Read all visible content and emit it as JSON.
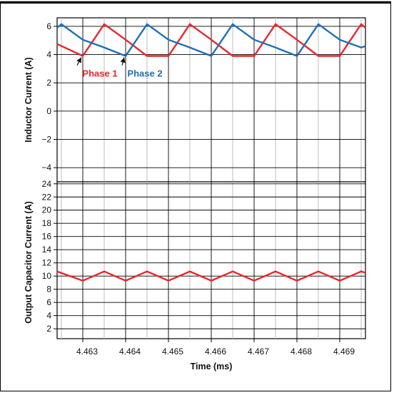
{
  "chart_data": [
    {
      "type": "line",
      "title": "",
      "xlabel": "",
      "ylabel": "Inductor Current (A)",
      "xlim": [
        4.4624,
        4.4696
      ],
      "ylim": [
        -5,
        6.6
      ],
      "grid": true,
      "x_ticks": [
        4.463,
        4.464,
        4.465,
        4.466,
        4.467,
        4.468,
        4.469
      ],
      "y_ticks": [
        -4,
        -2,
        0,
        2,
        4,
        6
      ],
      "y_tick_labels": [
        "−4",
        "−2",
        "0",
        "2",
        "4",
        "6"
      ],
      "series": [
        {
          "name": "Phase 1",
          "color": "#e8262c",
          "x": [
            4.4624,
            4.463,
            4.4635,
            4.464,
            4.4645,
            4.465,
            4.4655,
            4.466,
            4.4665,
            4.467,
            4.4675,
            4.468,
            4.4685,
            4.469,
            4.4695,
            4.4696
          ],
          "y": [
            4.75,
            3.9,
            6.15,
            5.05,
            3.9,
            3.9,
            6.15,
            5.05,
            3.9,
            3.9,
            6.15,
            5.05,
            3.9,
            3.9,
            6.15,
            5.9
          ]
        },
        {
          "name": "Phase 2",
          "color": "#1f6fb5",
          "x": [
            4.4624,
            4.4625,
            4.463,
            4.4635,
            4.464,
            4.4645,
            4.465,
            4.4655,
            4.466,
            4.4665,
            4.467,
            4.4675,
            4.468,
            4.4685,
            4.469,
            4.4695,
            4.4696
          ],
          "y": [
            5.9,
            6.15,
            5.05,
            4.5,
            3.9,
            6.15,
            5.05,
            4.5,
            3.9,
            6.15,
            5.05,
            4.5,
            3.9,
            6.15,
            5.05,
            4.5,
            4.6
          ]
        }
      ],
      "annotations": [
        {
          "text": "Phase 1",
          "color": "#e8262c",
          "points_to": [
            4.463,
            3.9
          ]
        },
        {
          "text": "Phase 2",
          "color": "#1f6fb5",
          "points_to": [
            4.464,
            3.9
          ]
        }
      ]
    },
    {
      "type": "line",
      "title": "",
      "xlabel": "Time (ms)",
      "ylabel": "Output Capacitor Current (A)",
      "xlim": [
        4.4624,
        4.4696
      ],
      "ylim": [
        0.5,
        24.3
      ],
      "grid": true,
      "x_ticks": [
        4.463,
        4.464,
        4.465,
        4.466,
        4.467,
        4.468,
        4.469
      ],
      "x_tick_labels": [
        "4.463",
        "4.464",
        "4.465",
        "4.466",
        "4.467",
        "4.468",
        "4.469"
      ],
      "y_ticks": [
        2,
        4,
        6,
        8,
        10,
        12,
        14,
        16,
        18,
        20,
        22,
        24
      ],
      "series": [
        {
          "name": "",
          "color": "#e8262c",
          "x": [
            4.4624,
            4.463,
            4.4635,
            4.464,
            4.4645,
            4.465,
            4.4655,
            4.466,
            4.4665,
            4.467,
            4.4675,
            4.468,
            4.4685,
            4.469,
            4.4695,
            4.4696
          ],
          "y": [
            10.7,
            9.3,
            10.7,
            9.3,
            10.7,
            9.3,
            10.7,
            9.3,
            10.7,
            9.3,
            10.7,
            9.3,
            10.7,
            9.3,
            10.7,
            10.5
          ]
        }
      ]
    }
  ]
}
